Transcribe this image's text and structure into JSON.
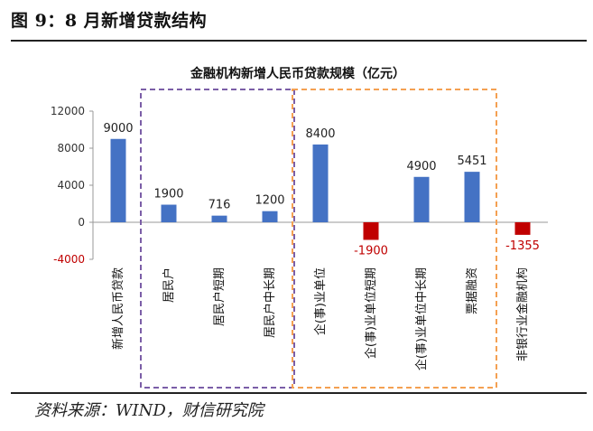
{
  "figure": {
    "label": "图 9：8 月新增贷款结构",
    "source": "资料来源：WIND，财信研究院"
  },
  "colors": {
    "positive": "#4472C4",
    "negative": "#C00000",
    "axis": "#999999",
    "group_purple": "#7B5EA7",
    "group_orange": "#F4A052"
  },
  "chart_data": {
    "type": "bar",
    "title": "金融机构新增人民币贷款规模（亿元）",
    "categories": [
      "新增人民币贷款",
      "居民户",
      "居民户短期",
      "居民户中长期",
      "企(事)业单位",
      "企(事)业单位短期",
      "企(事)业单位中长期",
      "票据融资",
      "非银行业金融机构"
    ],
    "values": [
      9000,
      1900,
      716,
      1200,
      8400,
      -1900,
      4900,
      5451,
      -1355
    ],
    "data_labels": [
      "9000",
      "1900",
      "716",
      "1200",
      "8400",
      "-1900",
      "4900",
      "5451",
      "-1355"
    ],
    "yticks": [
      12000,
      8000,
      4000,
      0,
      -4000
    ],
    "ytick_labels": [
      "12000",
      "8000",
      "4000",
      "0",
      "-4000"
    ],
    "ylim": [
      -4000,
      12000
    ],
    "xlabel": "",
    "ylabel": "",
    "grid": false,
    "legend": null,
    "groups": [
      {
        "name": "household",
        "start": 1,
        "end": 3
      },
      {
        "name": "enterprise",
        "start": 4,
        "end": 7
      }
    ]
  }
}
